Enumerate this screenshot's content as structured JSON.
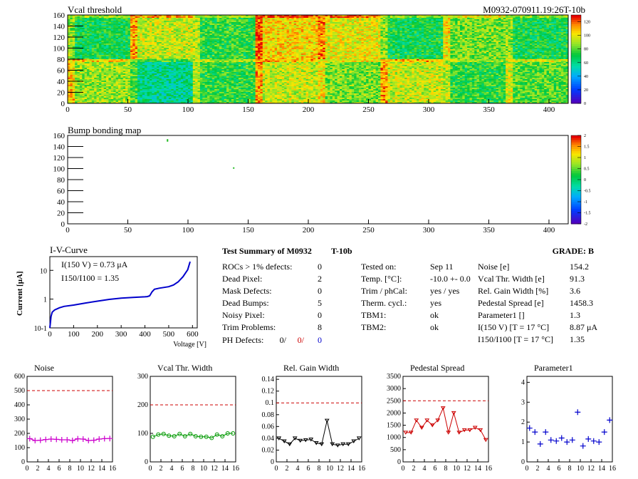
{
  "header": {
    "left_title": "Vcal threshold",
    "right_title": "M0932-070911.19:26T-10b"
  },
  "maps": {
    "vcal": {
      "x_ticks": [
        "0",
        "50",
        "100",
        "150",
        "200",
        "250",
        "300",
        "350",
        "400"
      ],
      "y_ticks": [
        "0",
        "20",
        "40",
        "60",
        "80",
        "100",
        "120",
        "140",
        "160"
      ],
      "colorbar_ticks": [
        "0",
        "20",
        "40",
        "60",
        "80",
        "100",
        "120"
      ]
    },
    "bump": {
      "title": "Bump bonding map",
      "x_ticks": [
        "0",
        "50",
        "100",
        "150",
        "200",
        "250",
        "300",
        "350",
        "400"
      ],
      "y_ticks": [
        "0",
        "20",
        "40",
        "60",
        "80",
        "100",
        "120",
        "140",
        "160"
      ],
      "colorbar_ticks": [
        "-2",
        "-1.5",
        "-1",
        "-0.5",
        "0",
        "0.5",
        "1",
        "1.5",
        "2"
      ]
    }
  },
  "iv": {
    "title": "I-V-Curve",
    "ylabel": "Current [μA]",
    "xlabel": "Voltage [V]",
    "annotation_1": "I(150 V) = 0.73 μA",
    "annotation_2": "I150/I100 =  1.35",
    "x_ticks": [
      "0",
      "100",
      "200",
      "300",
      "400",
      "500",
      "600"
    ],
    "y_ticks": [
      "10-1",
      "1",
      "10"
    ]
  },
  "summary": {
    "title": "Test Summary of M0932",
    "tag": "T-10b",
    "grade": "GRADE:  B",
    "left": [
      {
        "label": "ROCs > 1% defects:",
        "value": "0"
      },
      {
        "label": "Dead Pixel:",
        "value": "2"
      },
      {
        "label": "Mask Defects:",
        "value": "0"
      },
      {
        "label": "Dead Bumps:",
        "value": "5"
      },
      {
        "label": "Noisy Pixel:",
        "value": "0"
      },
      {
        "label": "Trim Problems:",
        "value": "8"
      }
    ],
    "ph_label": "PH Defects:",
    "ph_values": [
      "0/",
      "0/",
      "0"
    ],
    "middle": [
      {
        "label": "Tested on:",
        "value": "Sep 11"
      },
      {
        "label": "Temp. [°C]:",
        "value": "-10.0 +- 0.0"
      },
      {
        "label": "Trim / phCal:",
        "value": "yes / yes"
      },
      {
        "label": "Therm. cycl.:",
        "value": "yes"
      },
      {
        "label": "TBM1:",
        "value": "ok"
      },
      {
        "label": "TBM2:",
        "value": "ok"
      }
    ],
    "right": [
      {
        "label": "Noise [e]",
        "value": "154.2"
      },
      {
        "label": "Vcal Thr. Width [e]",
        "value": "91.3"
      },
      {
        "label": "Rel. Gain Width [%]",
        "value": "3.6"
      },
      {
        "label": "Pedestal Spread [e]",
        "value": "1458.3"
      },
      {
        "label": "Parameter1 []",
        "value": "1.3"
      },
      {
        "label": "I(150 V) [T = 17 °C]",
        "value": "8.87 μA"
      },
      {
        "label": "I150/I100  [T = 17 °C]",
        "value": "1.35"
      }
    ]
  },
  "colors": {
    "magenta": "#cc00cc",
    "green": "#009900",
    "black": "#000000",
    "red": "#cc0000",
    "blue": "#0000cc",
    "limit": "#cc0000"
  },
  "chart_data": [
    {
      "type": "heatmap",
      "title": "Vcal threshold",
      "xlim": [
        0,
        416
      ],
      "ylim": [
        0,
        160
      ],
      "zlim": [
        0,
        130
      ],
      "roc_grid": {
        "cols": 8,
        "rows": 2
      },
      "roc_mean": [
        [
          70,
          95,
          75,
          105,
          100,
          70,
          85,
          70
        ],
        [
          90,
          60,
          75,
          95,
          85,
          95,
          75,
          80
        ]
      ]
    },
    {
      "type": "scatter",
      "title": "Bump bonding map",
      "xlim": [
        0,
        416
      ],
      "ylim": [
        0,
        160
      ],
      "points": [
        [
          83,
          150
        ],
        [
          83,
          152
        ],
        [
          138,
          101
        ]
      ]
    },
    {
      "type": "line",
      "title": "I-V-Curve",
      "xlabel": "Voltage [V]",
      "ylabel": "Current [μA]",
      "log_y": true,
      "xlim": [
        0,
        620
      ],
      "ylim": [
        0.1,
        30
      ],
      "x": [
        0,
        5,
        10,
        20,
        40,
        60,
        100,
        150,
        200,
        250,
        300,
        350,
        400,
        410,
        420,
        430,
        440,
        460,
        500,
        520,
        540,
        560,
        580,
        590
      ],
      "y": [
        0.1,
        0.25,
        0.35,
        0.42,
        0.5,
        0.56,
        0.62,
        0.73,
        0.85,
        0.98,
        1.08,
        1.15,
        1.2,
        1.22,
        1.3,
        1.8,
        2.2,
        2.4,
        2.7,
        3.1,
        4.0,
        6.0,
        10.5,
        20.0
      ]
    },
    {
      "type": "scatter",
      "title": "Noise",
      "xlim": [
        0,
        16
      ],
      "ylim": [
        0,
        600
      ],
      "limit": 500,
      "x": [
        0,
        1,
        2,
        3,
        4,
        5,
        6,
        7,
        8,
        9,
        10,
        11,
        12,
        13,
        14,
        15
      ],
      "values": [
        163,
        150,
        152,
        157,
        160,
        158,
        155,
        155,
        150,
        162,
        160,
        150,
        152,
        160,
        163,
        164
      ]
    },
    {
      "type": "line",
      "title": "Vcal Thr. Width",
      "xlim": [
        0,
        16
      ],
      "ylim": [
        0,
        300
      ],
      "limit": 200,
      "x": [
        0,
        1,
        2,
        3,
        4,
        5,
        6,
        7,
        8,
        9,
        10,
        11,
        12,
        13,
        14,
        15
      ],
      "values": [
        88,
        96,
        98,
        92,
        90,
        98,
        90,
        98,
        90,
        88,
        88,
        84,
        96,
        90,
        100,
        100
      ]
    },
    {
      "type": "line",
      "title": "Rel. Gain Width",
      "xlim": [
        0,
        16
      ],
      "ylim": [
        0,
        0.145
      ],
      "limit": 0.1,
      "x": [
        0,
        1,
        2,
        3,
        4,
        5,
        6,
        7,
        8,
        9,
        10,
        11,
        12,
        13,
        14,
        15
      ],
      "values": [
        0.04,
        0.035,
        0.03,
        0.04,
        0.036,
        0.037,
        0.038,
        0.032,
        0.03,
        0.07,
        0.03,
        0.028,
        0.03,
        0.03,
        0.035,
        0.04
      ]
    },
    {
      "type": "line",
      "title": "Pedestal Spread",
      "xlim": [
        0,
        16
      ],
      "ylim": [
        0,
        3500
      ],
      "limit": 2500,
      "x": [
        0,
        1,
        2,
        3,
        4,
        5,
        6,
        7,
        8,
        9,
        10,
        11,
        12,
        13,
        14,
        15
      ],
      "values": [
        1200,
        1200,
        1700,
        1400,
        1700,
        1500,
        1700,
        2200,
        1200,
        2000,
        1200,
        1300,
        1300,
        1400,
        1300,
        900
      ]
    },
    {
      "type": "scatter",
      "title": "Parameter1",
      "xlim": [
        0,
        16
      ],
      "ylim": [
        0,
        4.3
      ],
      "x": [
        0,
        1,
        2,
        3,
        4,
        5,
        6,
        7,
        8,
        9,
        10,
        11,
        12,
        13,
        14,
        15
      ],
      "values": [
        1.7,
        1.5,
        0.9,
        1.5,
        1.1,
        1.05,
        1.2,
        1.0,
        1.1,
        2.5,
        0.8,
        1.15,
        1.05,
        1.0,
        1.5,
        2.1
      ]
    }
  ]
}
